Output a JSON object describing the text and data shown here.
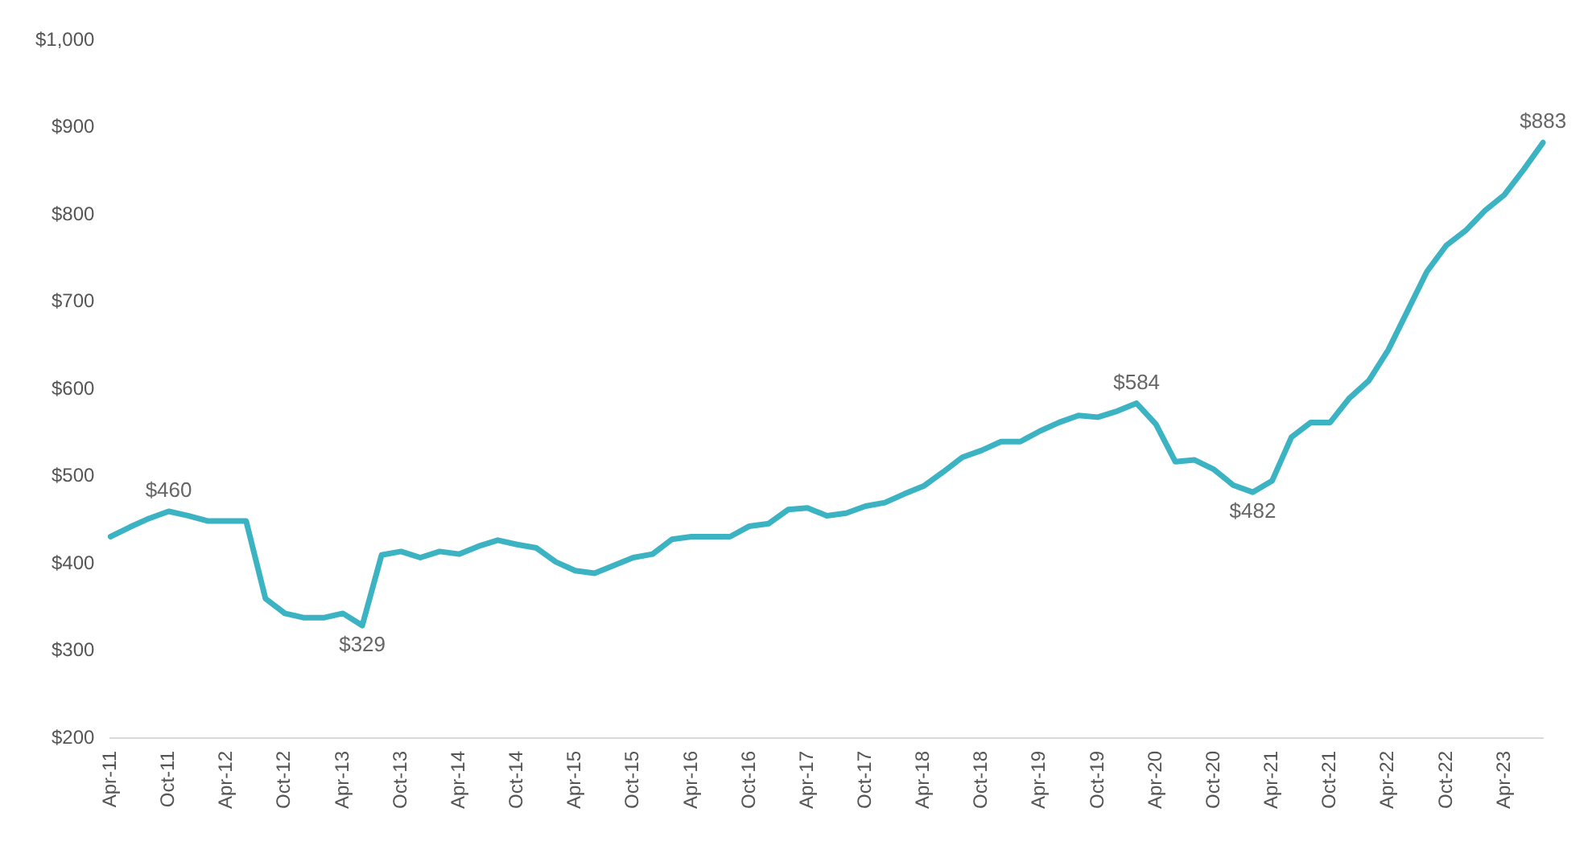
{
  "chart_data": {
    "type": "line",
    "categories": [
      "Apr-11",
      null,
      null,
      "Oct-11",
      null,
      null,
      "Apr-12",
      null,
      null,
      "Oct-12",
      null,
      null,
      "Apr-13",
      null,
      null,
      "Oct-13",
      null,
      null,
      "Apr-14",
      null,
      null,
      "Oct-14",
      null,
      null,
      "Apr-15",
      null,
      null,
      "Oct-15",
      null,
      null,
      "Apr-16",
      null,
      null,
      "Oct-16",
      null,
      null,
      "Apr-17",
      null,
      null,
      "Oct-17",
      null,
      null,
      "Apr-18",
      null,
      null,
      "Oct-18",
      null,
      null,
      "Apr-19",
      null,
      null,
      "Oct-19",
      null,
      null,
      "Apr-20",
      null,
      null,
      "Oct-20",
      null,
      null,
      "Apr-21",
      null,
      null,
      "Oct-21",
      null,
      null,
      "Apr-22",
      null,
      null,
      "Oct-22",
      null,
      null,
      "Apr-23",
      null,
      null
    ],
    "series": [
      {
        "color": "#3bb3c3",
        "values": [
          431,
          442,
          452,
          460,
          455,
          449,
          449,
          449,
          360,
          343,
          338,
          338,
          343,
          329,
          410,
          414,
          407,
          414,
          411,
          420,
          427,
          422,
          418,
          402,
          392,
          389,
          398,
          407,
          411,
          428,
          431,
          431,
          431,
          443,
          446,
          462,
          464,
          455,
          458,
          466,
          470,
          480,
          489,
          505,
          522,
          530,
          540,
          540,
          552,
          562,
          570,
          568,
          575,
          584,
          560,
          517,
          519,
          508,
          490,
          482,
          495,
          545,
          562,
          562,
          590,
          610,
          645,
          690,
          735,
          765,
          782,
          805,
          823,
          852,
          883
        ],
        "value_labels": [
          null,
          null,
          null,
          "$460",
          null,
          null,
          null,
          null,
          null,
          null,
          null,
          null,
          null,
          "$329",
          null,
          null,
          null,
          null,
          null,
          null,
          null,
          null,
          null,
          null,
          null,
          null,
          null,
          null,
          null,
          null,
          null,
          null,
          null,
          null,
          null,
          null,
          null,
          null,
          null,
          null,
          null,
          null,
          null,
          null,
          null,
          null,
          null,
          null,
          null,
          null,
          null,
          null,
          null,
          "$584",
          null,
          null,
          null,
          null,
          null,
          "$482",
          null,
          null,
          null,
          null,
          null,
          null,
          null,
          null,
          null,
          null,
          null,
          null,
          null,
          null,
          "$883"
        ]
      }
    ],
    "ylim": [
      200,
      1000
    ],
    "yticks": [
      {
        "value": 200,
        "label": "$200"
      },
      {
        "value": 300,
        "label": "$300"
      },
      {
        "value": 400,
        "label": "$400"
      },
      {
        "value": 500,
        "label": "$500"
      },
      {
        "value": 600,
        "label": "$600"
      },
      {
        "value": 700,
        "label": "$700"
      },
      {
        "value": 800,
        "label": "$800"
      },
      {
        "value": 900,
        "label": "$900"
      },
      {
        "value": 1000,
        "label": "$1,000"
      }
    ],
    "grid": false,
    "legend": false,
    "marker": "none",
    "line_style": "solid"
  }
}
